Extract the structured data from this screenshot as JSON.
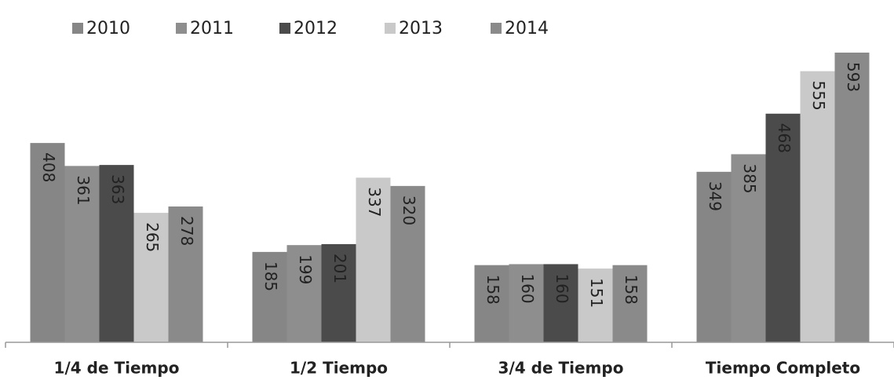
{
  "chart_data": {
    "type": "bar",
    "categories": [
      "1/4 de Tiempo",
      "1/2 Tiempo",
      "3/4 de Tiempo",
      "Tiempo Completo"
    ],
    "series": [
      {
        "name": "2010",
        "color": "#868686",
        "values": [
          408,
          185,
          158,
          349
        ]
      },
      {
        "name": "2011",
        "color": "#8e8e8e",
        "values": [
          361,
          199,
          160,
          385
        ]
      },
      {
        "name": "2012",
        "color": "#4b4b4b",
        "values": [
          363,
          201,
          160,
          468
        ]
      },
      {
        "name": "2013",
        "color": "#c9c9c9",
        "values": [
          265,
          337,
          151,
          555
        ]
      },
      {
        "name": "2014",
        "color": "#8a8a8a",
        "values": [
          278,
          320,
          158,
          593
        ]
      }
    ],
    "legend": "top"
  }
}
